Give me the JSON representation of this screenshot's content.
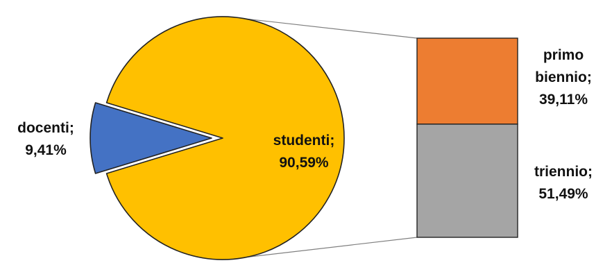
{
  "chart_data": {
    "type": "bar-of-pie",
    "pie": {
      "slices": [
        {
          "label": "docenti;",
          "value": 9.41,
          "value_text": "9,41%",
          "color": "#4472C4",
          "exploded": true
        },
        {
          "label": "studenti;",
          "value": 90.59,
          "value_text": "90,59%",
          "color": "#FFC000",
          "exploded": false
        }
      ]
    },
    "bar": {
      "breakdown_of": "studenti;",
      "segments": [
        {
          "label_lines": [
            "primo",
            "biennio;"
          ],
          "value": 39.11,
          "value_text": "39,11%",
          "color": "#ED7D31"
        },
        {
          "label_lines": [
            "triennio;"
          ],
          "value": 51.49,
          "value_text": "51,49%",
          "color": "#A5A5A5"
        }
      ]
    },
    "legend": "none",
    "connector_color": "#7F7F7F"
  }
}
